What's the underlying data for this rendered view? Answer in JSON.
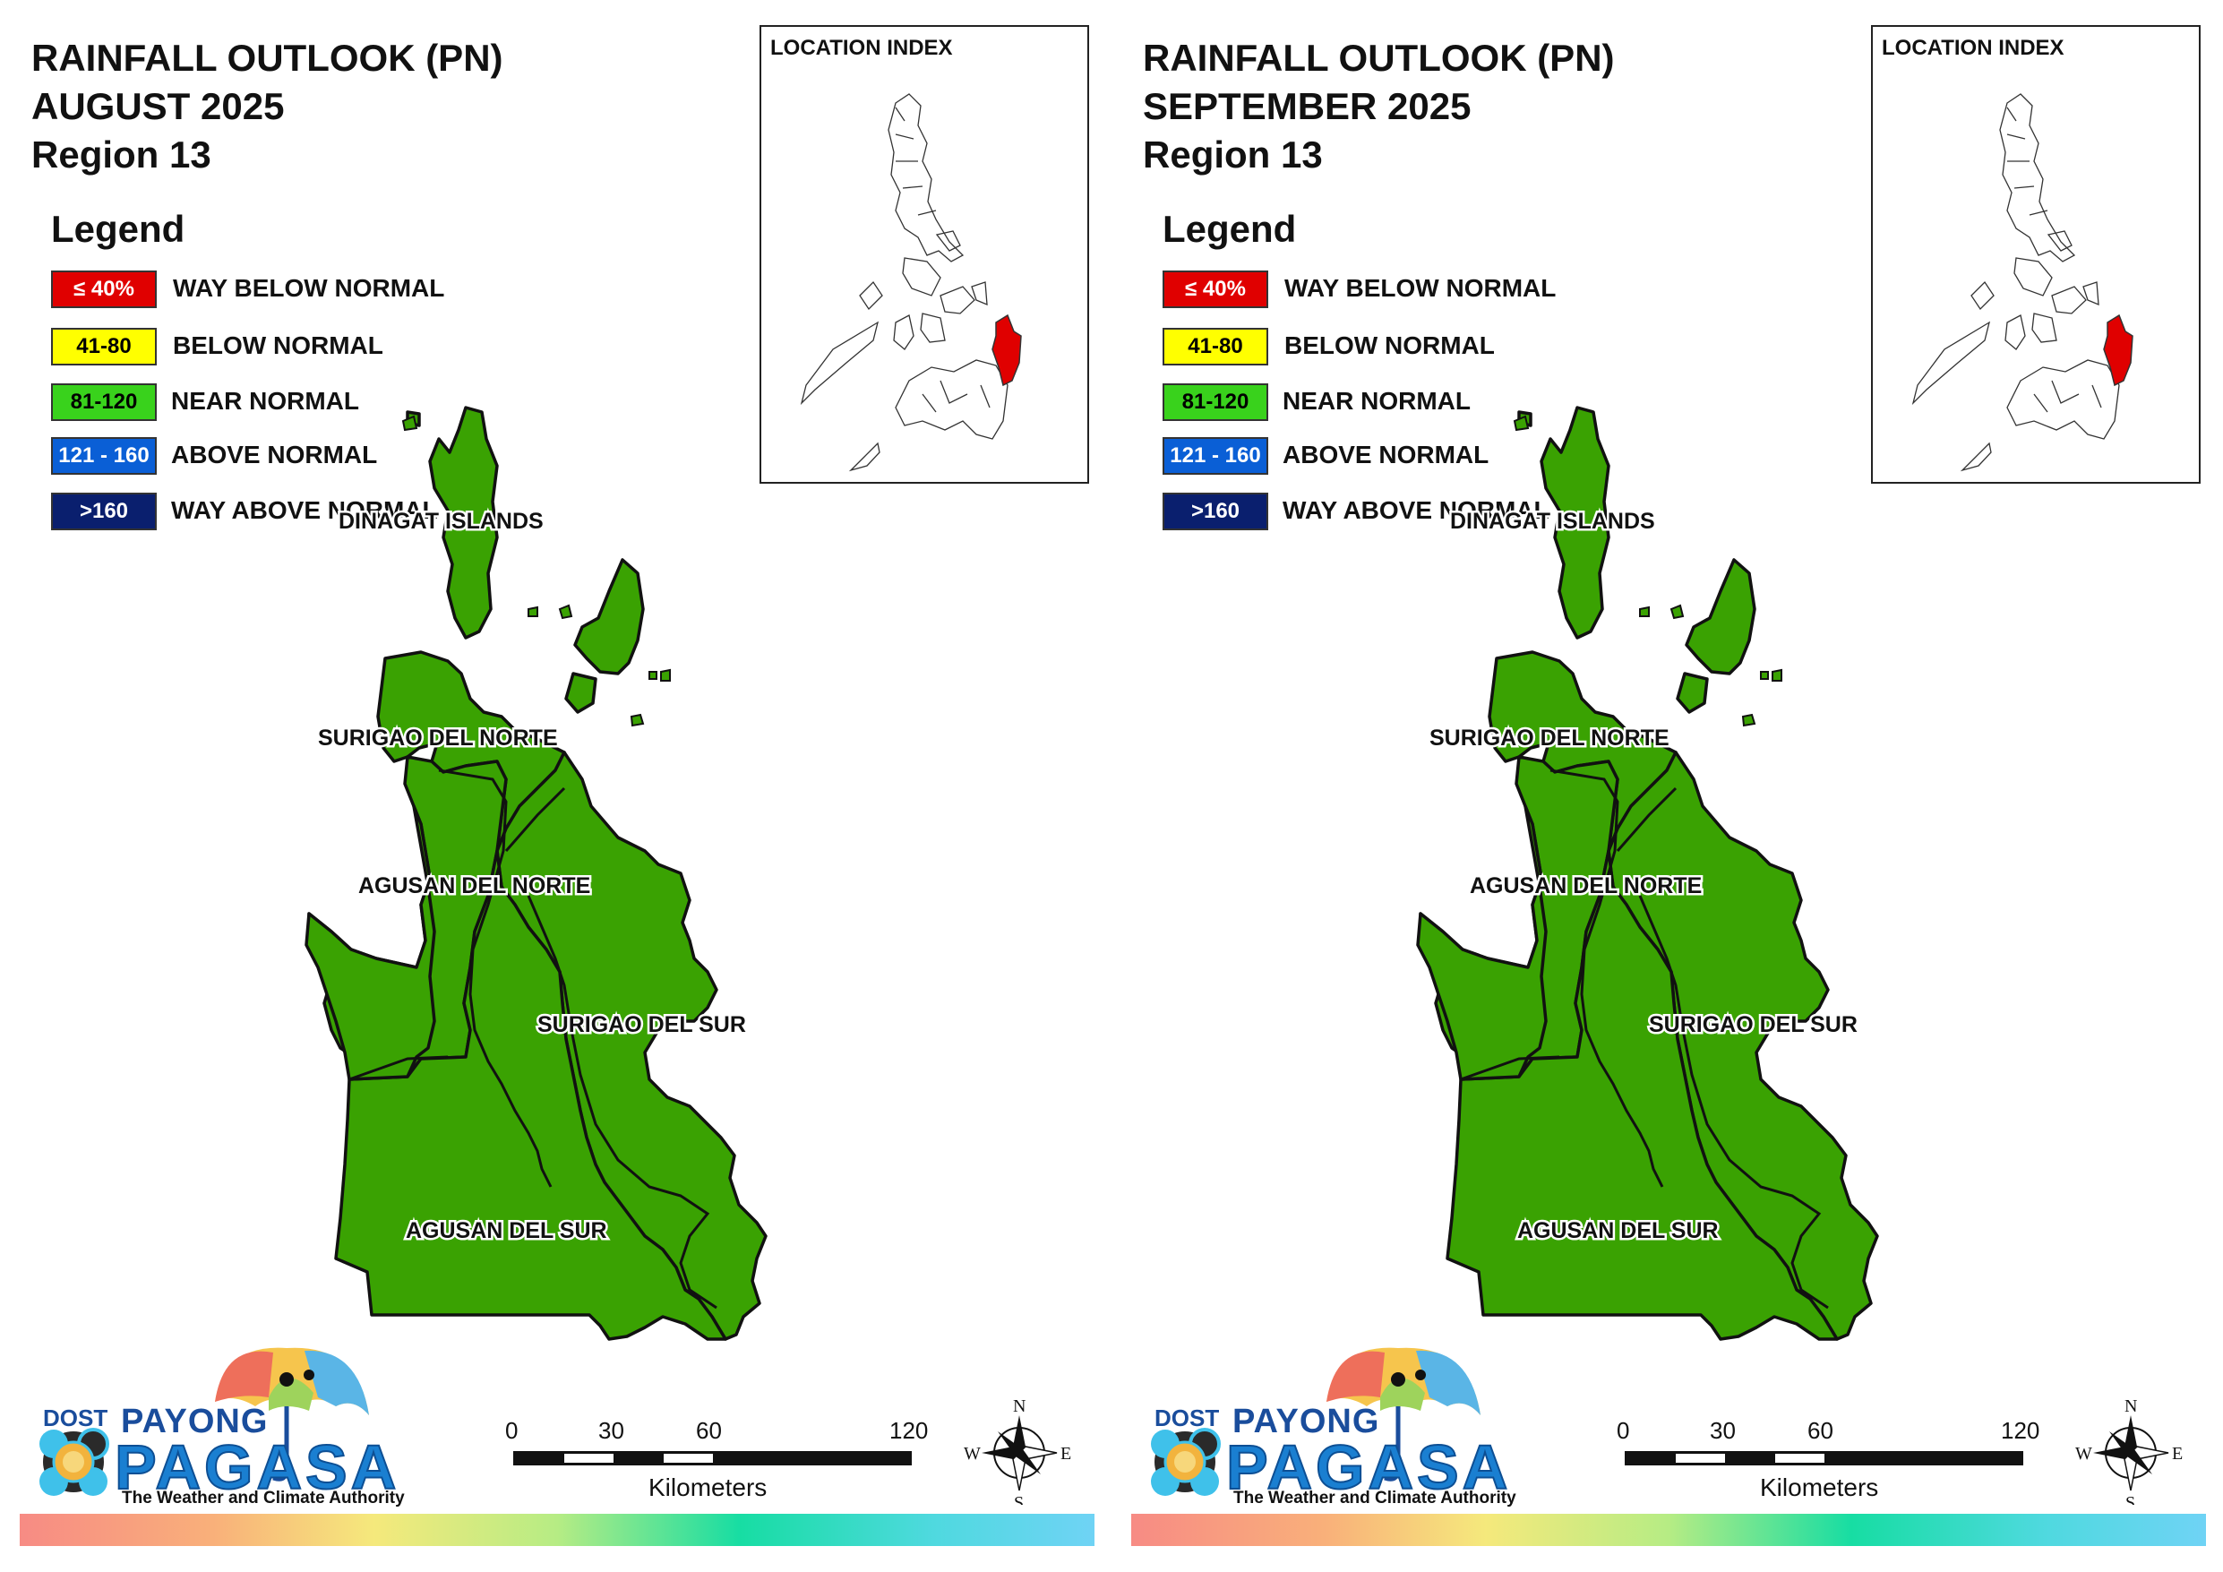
{
  "panels": [
    {
      "title_line1": "RAINFALL OUTLOOK (PN)",
      "title_line2": "AUGUST 2025",
      "title_line3": "Region 13"
    },
    {
      "title_line1": "RAINFALL OUTLOOK (PN)",
      "title_line2": "SEPTEMBER 2025",
      "title_line3": "Region 13"
    }
  ],
  "legend": {
    "title": "Legend",
    "items": [
      {
        "range": "≤ 40%",
        "label": "WAY BELOW NORMAL",
        "color": "#e00000",
        "text_color": "#ffffff"
      },
      {
        "range": "41-80",
        "label": "BELOW NORMAL",
        "color": "#ffff00",
        "text_color": "#000000"
      },
      {
        "range": "81-120",
        "label": "NEAR NORMAL",
        "color": "#39d21c",
        "text_color": "#000000"
      },
      {
        "range": "121 - 160",
        "label": "ABOVE NORMAL",
        "color": "#0a5fd6",
        "text_color": "#ffffff"
      },
      {
        "range": ">160",
        "label": "WAY ABOVE NORMAL",
        "color": "#0a1f6e",
        "text_color": "#ffffff"
      }
    ]
  },
  "inset": {
    "title": "LOCATION INDEX",
    "highlight_color": "#e00000"
  },
  "provinces": [
    {
      "name": "DINAGAT ISLANDS",
      "category": "NEAR NORMAL"
    },
    {
      "name": "SURIGAO DEL NORTE",
      "category": "NEAR NORMAL"
    },
    {
      "name": "AGUSAN DEL NORTE",
      "category": "NEAR NORMAL"
    },
    {
      "name": "SURIGAO DEL SUR",
      "category": "NEAR NORMAL"
    },
    {
      "name": "AGUSAN DEL SUR",
      "category": "NEAR NORMAL"
    }
  ],
  "map_fill_color": "#3aa202",
  "scale": {
    "ticks": [
      "0",
      "30",
      "60",
      "120"
    ],
    "unit": "Kilometers"
  },
  "compass": {
    "n": "N",
    "s": "S",
    "e": "E",
    "w": "W"
  },
  "logo": {
    "dost": "DOST",
    "payong": "PAYONG",
    "pagasa": "PAGASA",
    "tagline": "The Weather and Climate Authority"
  }
}
